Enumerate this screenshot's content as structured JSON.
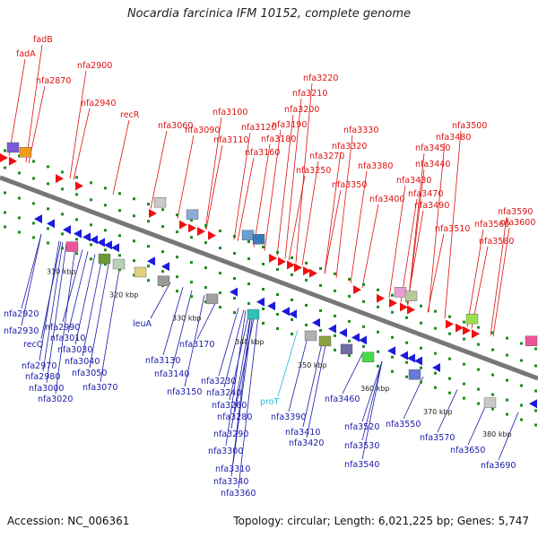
{
  "title": "Nocardia farcinica IFM 10152, complete genome",
  "accession": "Accession: NC_006361",
  "stats": "Topology: circular; Length: 6,021,225 bp; Genes: 5,747",
  "colors": {
    "top_label": "#dd1111",
    "bottom_label": "#1a1aaa",
    "rna_label": "#22bbdd",
    "backbone": "#777777",
    "tick_dot": "#1c8c1c",
    "forward_gene": "#ee1111",
    "reverse_gene": "#1b1bdd"
  },
  "scale_ticks": [
    {
      "label": "310 kbp"
    },
    {
      "label": "320 kbp"
    },
    {
      "label": "330 kbp"
    },
    {
      "label": "340 kbp"
    },
    {
      "label": "350 kbp"
    },
    {
      "label": "360 kbp"
    },
    {
      "label": "370 kbp"
    },
    {
      "label": "380 kbp"
    }
  ],
  "top_labels": [
    "fadB",
    "fadA",
    "nfa2870",
    "nfa2900",
    "nfa2940",
    "recR",
    "nfa3060",
    "nfa3090",
    "nfa3100",
    "nfa3110",
    "nfa3120",
    "nfa3160",
    "nfa3180",
    "nfa3190",
    "nfa3200",
    "nfa3210",
    "nfa3220",
    "nfa3250",
    "nfa3270",
    "nfa3320",
    "nfa3330",
    "nfa3350",
    "nfa3380",
    "nfa3400",
    "nfa3430",
    "nfa3440",
    "nfa3450",
    "nfa3470",
    "nfa3480",
    "nfa3490",
    "nfa3500",
    "nfa3510",
    "nfa3560",
    "nfa3580",
    "nfa3590",
    "nfa3600"
  ],
  "bottom_labels": [
    "nfa2920",
    "nfa2930",
    "recQ",
    "nfa2970",
    "nfa2980",
    "nfa2990",
    "nfa3000",
    "nfa3010",
    "nfa3020",
    "nfa3030",
    "nfa3040",
    "nfa3050",
    "nfa3070",
    "leuA",
    "nfa3130",
    "nfa3140",
    "nfa3150",
    "nfa3170",
    "nfa3230",
    "nfa3240",
    "nfa3260",
    "nfa3280",
    "nfa3290",
    "nfa3300",
    "nfa3310",
    "nfa3340",
    "nfa3360",
    "proT",
    "nfa3390",
    "nfa3410",
    "nfa3420",
    "nfa3460",
    "nfa3520",
    "nfa3530",
    "nfa3540",
    "nfa3550",
    "nfa3570",
    "nfa3650",
    "nfa3690"
  ]
}
